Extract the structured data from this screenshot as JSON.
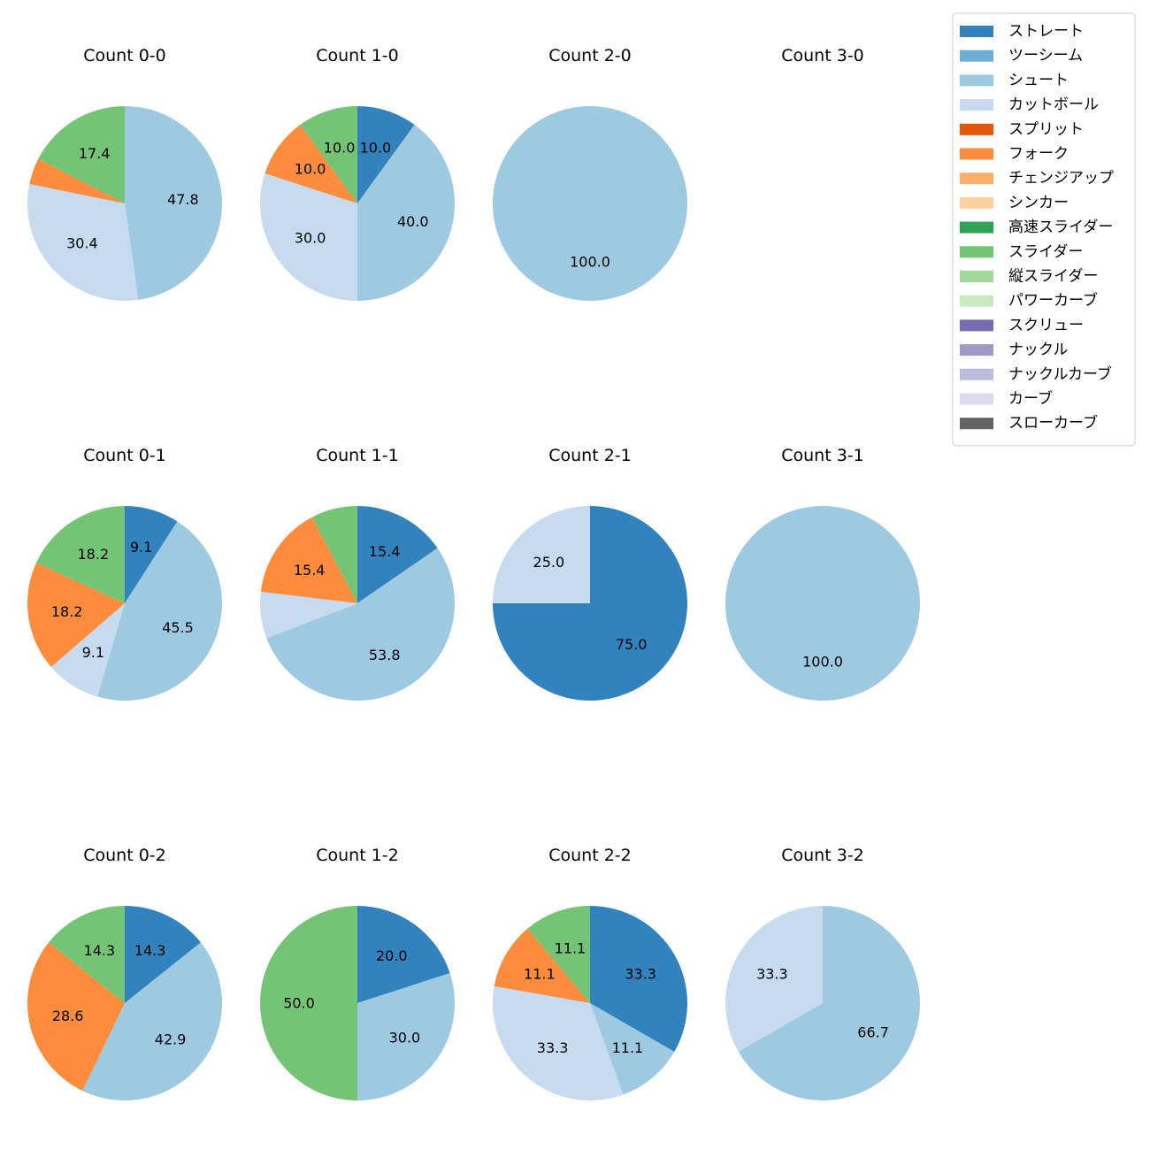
{
  "chart_data": {
    "type": "pie",
    "colors": {
      "ストレート": "#3182bd",
      "ツーシーム": "#6baed6",
      "シュート": "#9ecae1",
      "カットボール": "#c6dbef",
      "スプリット": "#e6550d",
      "フォーク": "#fd8d3c",
      "チェンジアップ": "#fdae6b",
      "シンカー": "#fdd0a2",
      "高速スライダー": "#31a354",
      "スライダー": "#74c476",
      "縦スライダー": "#a1d99b",
      "パワーカーブ": "#c7e9c0",
      "スクリュー": "#756bb1",
      "ナックル": "#9e9ac8",
      "ナックルカーブ": "#bcbddc",
      "カーブ": "#dadaeb",
      "スローカーブ": "#636363"
    },
    "legend": {
      "placement": "top-right",
      "entries": [
        "ストレート",
        "ツーシーム",
        "シュート",
        "カットボール",
        "スプリット",
        "フォーク",
        "チェンジアップ",
        "シンカー",
        "高速スライダー",
        "スライダー",
        "縦スライダー",
        "パワーカーブ",
        "スクリュー",
        "ナックル",
        "ナックルカーブ",
        "カーブ",
        "スローカーブ"
      ]
    },
    "pies": [
      {
        "title": "Count 0-0",
        "slices": [
          {
            "name": "シュート",
            "value": 47.8,
            "label": "47.8"
          },
          {
            "name": "カットボール",
            "value": 30.4,
            "label": "30.4"
          },
          {
            "name": "フォーク",
            "value": 4.4,
            "label": ""
          },
          {
            "name": "スライダー",
            "value": 17.4,
            "label": "17.4"
          }
        ]
      },
      {
        "title": "Count 1-0",
        "slices": [
          {
            "name": "ストレート",
            "value": 10.0,
            "label": "10.0"
          },
          {
            "name": "シュート",
            "value": 40.0,
            "label": "40.0"
          },
          {
            "name": "カットボール",
            "value": 30.0,
            "label": "30.0"
          },
          {
            "name": "フォーク",
            "value": 10.0,
            "label": "10.0"
          },
          {
            "name": "スライダー",
            "value": 10.0,
            "label": "10.0"
          }
        ]
      },
      {
        "title": "Count 2-0",
        "slices": [
          {
            "name": "シュート",
            "value": 100.0,
            "label": "100.0"
          }
        ]
      },
      {
        "title": "Count 3-0",
        "slices": []
      },
      {
        "title": "Count 0-1",
        "slices": [
          {
            "name": "ストレート",
            "value": 9.1,
            "label": "9.1"
          },
          {
            "name": "シュート",
            "value": 45.5,
            "label": "45.5"
          },
          {
            "name": "カットボール",
            "value": 9.1,
            "label": "9.1"
          },
          {
            "name": "フォーク",
            "value": 18.2,
            "label": "18.2"
          },
          {
            "name": "スライダー",
            "value": 18.2,
            "label": "18.2"
          }
        ]
      },
      {
        "title": "Count 1-1",
        "slices": [
          {
            "name": "ストレート",
            "value": 15.4,
            "label": "15.4"
          },
          {
            "name": "シュート",
            "value": 53.8,
            "label": "53.8"
          },
          {
            "name": "カットボール",
            "value": 7.7,
            "label": ""
          },
          {
            "name": "フォーク",
            "value": 15.4,
            "label": "15.4"
          },
          {
            "name": "スライダー",
            "value": 7.7,
            "label": ""
          }
        ]
      },
      {
        "title": "Count 2-1",
        "slices": [
          {
            "name": "ストレート",
            "value": 75.0,
            "label": "75.0"
          },
          {
            "name": "カットボール",
            "value": 25.0,
            "label": "25.0"
          }
        ]
      },
      {
        "title": "Count 3-1",
        "slices": [
          {
            "name": "シュート",
            "value": 100.0,
            "label": "100.0"
          }
        ]
      },
      {
        "title": "Count 0-2",
        "slices": [
          {
            "name": "ストレート",
            "value": 14.3,
            "label": "14.3"
          },
          {
            "name": "シュート",
            "value": 42.9,
            "label": "42.9"
          },
          {
            "name": "フォーク",
            "value": 28.6,
            "label": "28.6"
          },
          {
            "name": "スライダー",
            "value": 14.3,
            "label": "14.3"
          }
        ]
      },
      {
        "title": "Count 1-2",
        "slices": [
          {
            "name": "ストレート",
            "value": 20.0,
            "label": "20.0"
          },
          {
            "name": "シュート",
            "value": 30.0,
            "label": "30.0"
          },
          {
            "name": "スライダー",
            "value": 50.0,
            "label": "50.0"
          }
        ]
      },
      {
        "title": "Count 2-2",
        "slices": [
          {
            "name": "ストレート",
            "value": 33.3,
            "label": "33.3"
          },
          {
            "name": "シュート",
            "value": 11.1,
            "label": "11.1"
          },
          {
            "name": "カットボール",
            "value": 33.3,
            "label": "33.3"
          },
          {
            "name": "フォーク",
            "value": 11.1,
            "label": "11.1"
          },
          {
            "name": "スライダー",
            "value": 11.1,
            "label": "11.1"
          }
        ]
      },
      {
        "title": "Count 3-2",
        "slices": [
          {
            "name": "シュート",
            "value": 66.7,
            "label": "66.7"
          },
          {
            "name": "カットボール",
            "value": 33.3,
            "label": "33.3"
          }
        ]
      }
    ]
  }
}
